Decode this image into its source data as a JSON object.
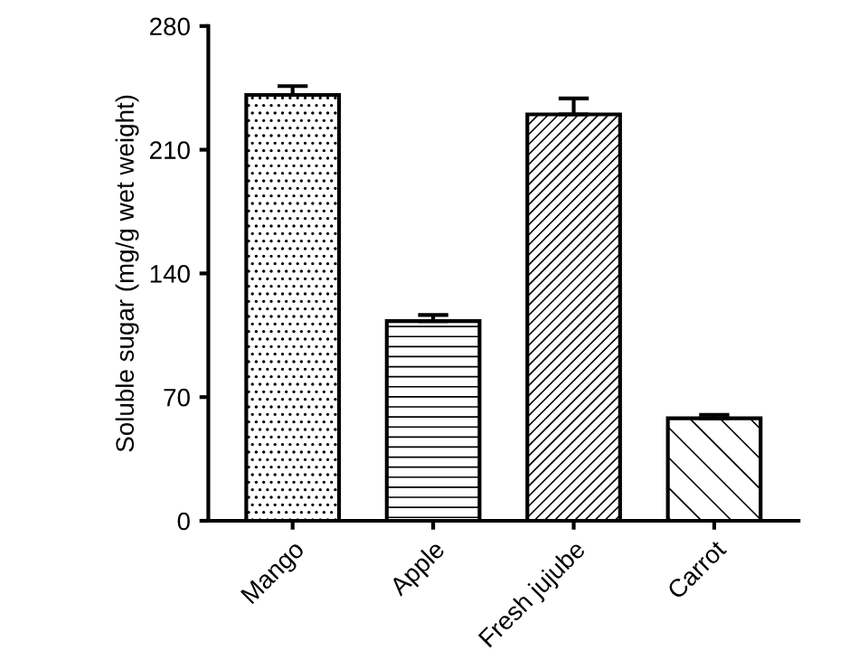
{
  "chart_data": {
    "type": "bar",
    "ylabel": "Soluble sugar (mg/g wet weight)",
    "categories": [
      "Mango",
      "Apple",
      "Fresh jujube",
      "Carrot"
    ],
    "values": [
      241,
      113,
      230,
      58
    ],
    "errors": [
      5,
      3.5,
      9,
      2
    ],
    "color": "#000000",
    "ylim": [
      0,
      280
    ],
    "yticks": [
      0,
      70,
      140,
      210,
      280
    ],
    "grid": false
  }
}
